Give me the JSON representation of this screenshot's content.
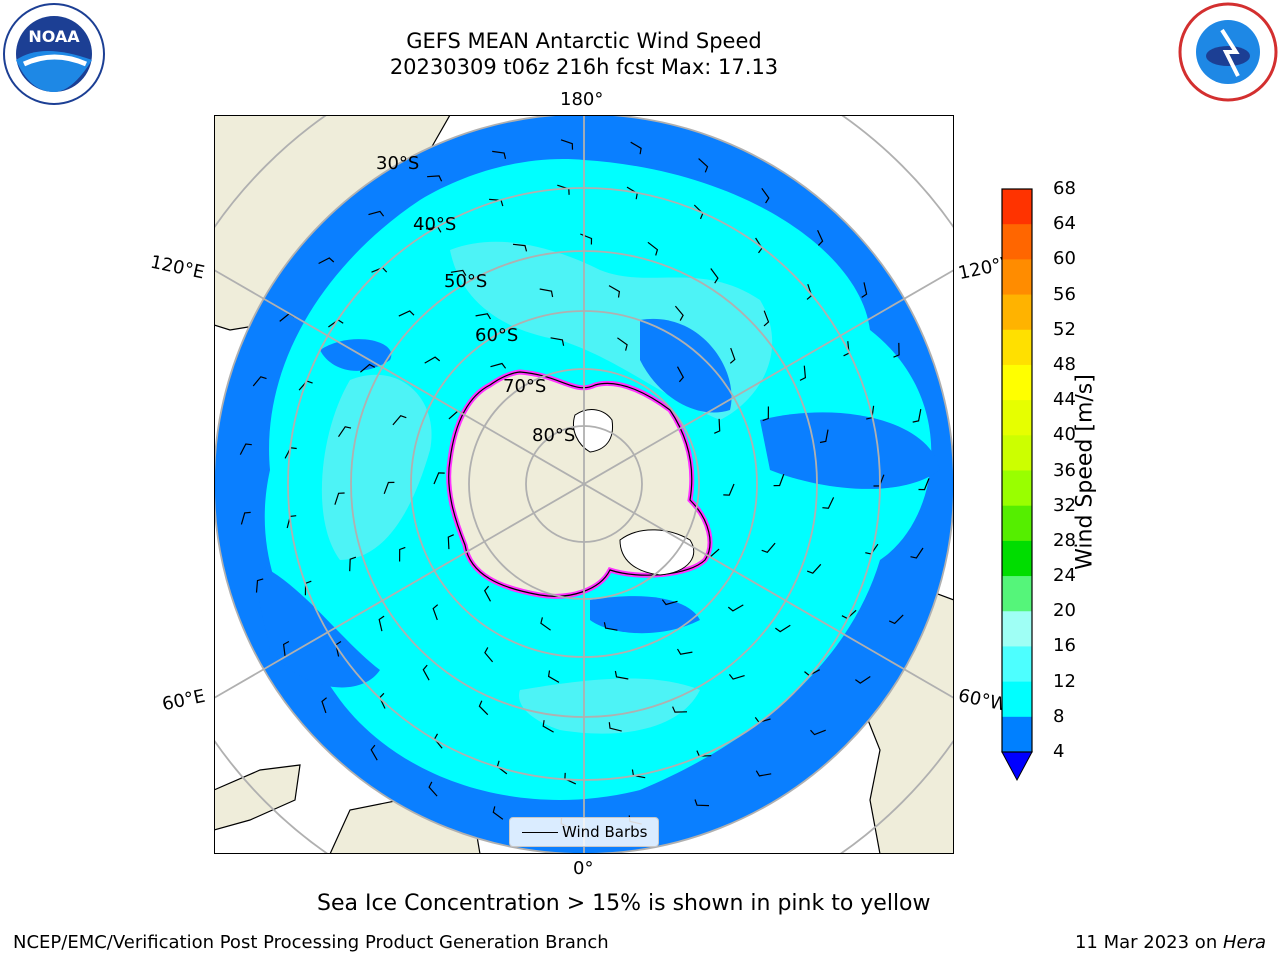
{
  "title_line1": "GEFS MEAN Antarctic Wind Speed",
  "title_line2": "20230309 t06z 216h fcst   Max: 17.13",
  "logos": {
    "left": "NOAA",
    "right": "National Weather Service"
  },
  "lon_labels": {
    "top": "180°",
    "bottom": "0°",
    "left_upper": "120°E",
    "right_upper": "120°W",
    "left_lower": "60°E",
    "right_lower": "60°W"
  },
  "lat_labels": [
    "30°S",
    "40°S",
    "50°S",
    "60°S",
    "70°S",
    "80°S"
  ],
  "legend": {
    "wind_barbs": "Wind Barbs"
  },
  "colorbar": {
    "label": "Wind Speed [m/s]",
    "ticks": [
      "68",
      "64",
      "60",
      "56",
      "52",
      "48",
      "44",
      "40",
      "36",
      "32",
      "28",
      "24",
      "20",
      "16",
      "12",
      "8",
      "4"
    ],
    "colors": [
      "#ff0000",
      "#ff3300",
      "#ff6600",
      "#ff8c00",
      "#ffb300",
      "#ffe000",
      "#ffff00",
      "#e6ff00",
      "#ccff00",
      "#99ff00",
      "#55ee00",
      "#00dd00",
      "#55f57a",
      "#9ffff5",
      "#4dffff",
      "#00ffff",
      "#0080ff"
    ],
    "extend_color": "#0000ff"
  },
  "caption": "Sea Ice Concentration > 15% is shown in pink to yellow",
  "footer_left": "NCEP/EMC/Verification Post Processing Product Generation Branch",
  "footer_right_date": "11 Mar 2023 on ",
  "footer_right_host": "Hera"
}
